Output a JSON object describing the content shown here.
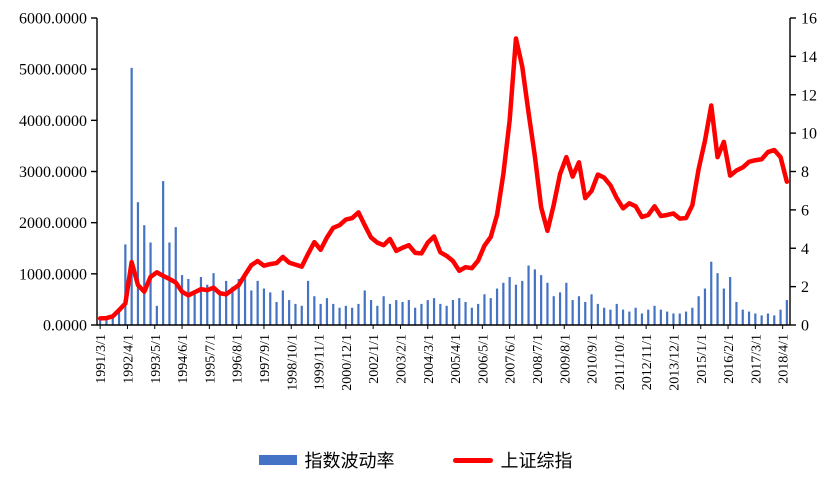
{
  "chart_data": {
    "type": "combo-bar-line",
    "title": "",
    "xlabel": "",
    "ylabel_left": "",
    "ylabel_right": "",
    "grid": false,
    "legend_position": "bottom",
    "categories": [
      "1991/3",
      "1991/6",
      "1991/9",
      "1991/12",
      "1992/3",
      "1992/6",
      "1992/9",
      "1992/12",
      "1993/3",
      "1993/6",
      "1993/9",
      "1993/12",
      "1994/3",
      "1994/6",
      "1994/9",
      "1994/12",
      "1995/3",
      "1995/6",
      "1995/9",
      "1995/12",
      "1996/3",
      "1996/6",
      "1996/9",
      "1996/12",
      "1997/3",
      "1997/6",
      "1997/9",
      "1997/12",
      "1998/3",
      "1998/6",
      "1998/9",
      "1998/12",
      "1999/3",
      "1999/6",
      "1999/9",
      "1999/12",
      "2000/3",
      "2000/6",
      "2000/9",
      "2000/12",
      "2001/3",
      "2001/6",
      "2001/9",
      "2001/12",
      "2002/3",
      "2002/6",
      "2002/9",
      "2002/12",
      "2003/3",
      "2003/6",
      "2003/9",
      "2003/12",
      "2004/3",
      "2004/6",
      "2004/9",
      "2004/12",
      "2005/3",
      "2005/6",
      "2005/9",
      "2005/12",
      "2006/3",
      "2006/6",
      "2006/9",
      "2006/12",
      "2007/3",
      "2007/6",
      "2007/9",
      "2007/12",
      "2008/3",
      "2008/6",
      "2008/9",
      "2008/12",
      "2009/3",
      "2009/6",
      "2009/9",
      "2009/12",
      "2010/3",
      "2010/6",
      "2010/9",
      "2010/12",
      "2011/3",
      "2011/6",
      "2011/9",
      "2011/12",
      "2012/3",
      "2012/6",
      "2012/9",
      "2012/12",
      "2013/3",
      "2013/6",
      "2013/9",
      "2013/12",
      "2014/3",
      "2014/6",
      "2014/9",
      "2014/12",
      "2015/3",
      "2015/6",
      "2015/9",
      "2015/12",
      "2016/3",
      "2016/6",
      "2016/9",
      "2016/12",
      "2017/3",
      "2017/6",
      "2017/9",
      "2017/12",
      "2018/3",
      "2018/6"
    ],
    "series": [
      {
        "name": "指数波动率",
        "type": "bar",
        "axis": "right",
        "color": "#4472C4",
        "values": [
          0.4,
          0.4,
          0.5,
          0.7,
          4.2,
          13.4,
          6.4,
          5.2,
          4.3,
          1.0,
          7.5,
          4.3,
          5.1,
          2.6,
          2.4,
          1.6,
          2.5,
          2.1,
          2.7,
          1.8,
          2.3,
          2.0,
          2.4,
          2.7,
          1.8,
          2.3,
          1.9,
          1.7,
          1.2,
          1.8,
          1.3,
          1.1,
          1.0,
          2.3,
          1.5,
          1.1,
          1.4,
          1.1,
          0.9,
          1.0,
          0.9,
          1.1,
          1.8,
          1.3,
          1.0,
          1.5,
          1.1,
          1.3,
          1.2,
          1.3,
          0.9,
          1.1,
          1.3,
          1.4,
          1.1,
          1.0,
          1.3,
          1.4,
          1.2,
          0.9,
          1.1,
          1.6,
          1.4,
          1.9,
          2.2,
          2.5,
          2.1,
          2.3,
          3.1,
          2.9,
          2.6,
          2.2,
          1.5,
          1.7,
          2.2,
          1.3,
          1.5,
          1.2,
          1.6,
          1.1,
          0.9,
          0.8,
          1.1,
          0.8,
          0.7,
          0.9,
          0.6,
          0.8,
          1.0,
          0.8,
          0.7,
          0.6,
          0.6,
          0.7,
          0.9,
          1.5,
          1.9,
          3.3,
          2.7,
          1.9,
          2.5,
          1.2,
          0.8,
          0.7,
          0.6,
          0.5,
          0.6,
          0.5,
          0.8,
          1.3
        ]
      },
      {
        "name": "上证综指",
        "type": "line",
        "axis": "left",
        "color": "#FF0000",
        "values": [
          130,
          135,
          170,
          290,
          420,
          1230,
          780,
          650,
          940,
          1030,
          960,
          900,
          830,
          650,
          580,
          640,
          700,
          680,
          730,
          620,
          600,
          690,
          780,
          980,
          1170,
          1250,
          1160,
          1190,
          1210,
          1330,
          1220,
          1180,
          1140,
          1390,
          1620,
          1470,
          1710,
          1900,
          1950,
          2060,
          2090,
          2200,
          1950,
          1710,
          1610,
          1560,
          1680,
          1450,
          1510,
          1560,
          1410,
          1400,
          1610,
          1730,
          1420,
          1350,
          1250,
          1060,
          1130,
          1110,
          1260,
          1550,
          1720,
          2150,
          2950,
          4000,
          5600,
          5050,
          4150,
          3300,
          2300,
          1840,
          2350,
          2950,
          3280,
          2900,
          3180,
          2480,
          2620,
          2940,
          2880,
          2730,
          2480,
          2280,
          2380,
          2320,
          2110,
          2150,
          2320,
          2130,
          2150,
          2180,
          2080,
          2090,
          2340,
          3050,
          3600,
          4290,
          3280,
          3580,
          2920,
          3020,
          3080,
          3190,
          3220,
          3240,
          3380,
          3420,
          3280,
          2800
        ]
      }
    ],
    "left_axis": {
      "min": 0,
      "max": 6000,
      "step": 1000,
      "tick_labels": [
        "0.0000",
        "1000.0000",
        "2000.0000",
        "3000.0000",
        "4000.0000",
        "5000.0000",
        "6000.0000"
      ]
    },
    "right_axis": {
      "min": 0,
      "max": 16,
      "step": 2,
      "tick_labels": [
        "0",
        "2",
        "4",
        "6",
        "8",
        "10",
        "12",
        "14",
        "16"
      ]
    },
    "x_tick_labels": [
      "1991/3/1",
      "1992/4/1",
      "1993/5/1",
      "1994/6/1",
      "1995/7/1",
      "1996/8/1",
      "1997/9/1",
      "1998/10/1",
      "1999/11/1",
      "2000/12/1",
      "2002/1/1",
      "2003/2/1",
      "2004/3/1",
      "2005/4/1",
      "2006/5/1",
      "2007/6/1",
      "2008/7/1",
      "2009/8/1",
      "2010/9/1",
      "2011/10/1",
      "2012/11/1",
      "2013/12/1",
      "2015/1/1",
      "2016/2/1",
      "2017/3/1",
      "2018/4/1"
    ],
    "x_tick_step_months": 13,
    "data_step_months": 3
  }
}
